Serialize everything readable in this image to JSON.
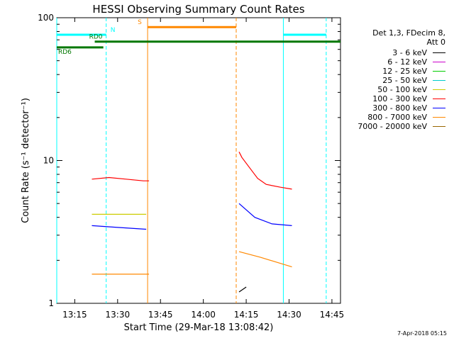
{
  "chart_data": {
    "type": "line",
    "title": "HESSI Observing Summary Count Rates",
    "xlabel": "Start Time (29-Mar-18 13:08:42)",
    "ylabel": "Count Rate (s⁻¹ detector⁻¹)",
    "y_scale": "log",
    "ylim": [
      1,
      100
    ],
    "xlim": [
      "13:08:42",
      "14:48:00"
    ],
    "x_ticks": [
      "13:15",
      "13:30",
      "13:45",
      "14:00",
      "14:15",
      "14:30",
      "14:45"
    ],
    "y_ticks": [
      "1",
      "10",
      "100"
    ],
    "grid": false,
    "legend_header": [
      "Det 1,3, FDecim 8,",
      "Att 0"
    ],
    "legend_placement": "right",
    "series": [
      {
        "name": "3 - 6 keV",
        "color": "#000000",
        "segments": [
          [
            [
              "14:12:30",
              1.2
            ],
            [
              "14:15:00",
              1.3
            ]
          ]
        ]
      },
      {
        "name": "6 - 12 keV",
        "color": "#cc00cc",
        "segments": []
      },
      {
        "name": "12 - 25 keV",
        "color": "#00cc00",
        "segments": []
      },
      {
        "name": "25 - 50 keV",
        "color": "#00cccc",
        "segments": []
      },
      {
        "name": "50 - 100 keV",
        "color": "#cccc00",
        "segments": [
          [
            [
              "13:21:00",
              4.2
            ],
            [
              "13:40:00",
              4.2
            ]
          ]
        ]
      },
      {
        "name": "100 - 300 keV",
        "color": "#ff0000",
        "segments": [
          [
            [
              "13:21:00",
              7.4
            ],
            [
              "13:27:00",
              7.6
            ],
            [
              "13:33:00",
              7.4
            ],
            [
              "13:39:00",
              7.2
            ],
            [
              "13:41:00",
              7.2
            ]
          ],
          [
            [
              "14:12:30",
              11.5
            ],
            [
              "14:13:30",
              10.5
            ],
            [
              "14:16:00",
              9.0
            ],
            [
              "14:19:00",
              7.5
            ],
            [
              "14:22:00",
              6.8
            ],
            [
              "14:27:00",
              6.5
            ],
            [
              "14:31:00",
              6.3
            ]
          ]
        ]
      },
      {
        "name": "300 - 800 keV",
        "color": "#0000ff",
        "segments": [
          [
            [
              "13:21:00",
              3.5
            ],
            [
              "13:30:00",
              3.4
            ],
            [
              "13:40:00",
              3.3
            ]
          ],
          [
            [
              "14:12:30",
              5.0
            ],
            [
              "14:18:00",
              4.0
            ],
            [
              "14:24:00",
              3.6
            ],
            [
              "14:31:00",
              3.5
            ]
          ]
        ]
      },
      {
        "name": "800 - 7000 keV",
        "color": "#ff8800",
        "segments": [
          [
            [
              "13:21:00",
              1.6
            ],
            [
              "13:30:00",
              1.6
            ],
            [
              "13:41:00",
              1.6
            ]
          ],
          [
            [
              "14:12:30",
              2.3
            ],
            [
              "14:20:00",
              2.1
            ],
            [
              "14:31:00",
              1.8
            ]
          ]
        ]
      },
      {
        "name": "7000 - 20000 keV",
        "color": "#996600",
        "segments": []
      }
    ],
    "annotations": [
      {
        "label": "N",
        "color": "#00ffff",
        "bars": [
          [
            "13:08:42",
            "13:26:00"
          ],
          [
            "14:28:00",
            "14:43:00"
          ]
        ],
        "level": 76
      },
      {
        "label": "S",
        "color": "#ff8800",
        "bars": [
          [
            "13:40:30",
            "14:11:30"
          ]
        ],
        "level": 86
      },
      {
        "label": "RD0",
        "color": "#007700",
        "bars": [
          [
            "13:22:00",
            "14:48:00"
          ]
        ],
        "level": 68
      },
      {
        "label": "RD6",
        "color": "#007700",
        "bars": [
          [
            "13:08:42",
            "13:25:00"
          ]
        ],
        "level": 62
      }
    ],
    "markers": [
      {
        "time": "13:26:00",
        "color": "#00ffff",
        "style": "dashed"
      },
      {
        "time": "13:40:30",
        "color": "#ff8800",
        "style": "solid"
      },
      {
        "time": "14:11:30",
        "color": "#ff8800",
        "style": "dashed"
      },
      {
        "time": "14:28:00",
        "color": "#00ffff",
        "style": "solid"
      },
      {
        "time": "14:43:00",
        "color": "#00ffff",
        "style": "dashed"
      },
      {
        "time": "13:08:42",
        "color": "#00ffff",
        "style": "solid"
      }
    ]
  },
  "footer_date": "7-Apr-2018 05:15"
}
